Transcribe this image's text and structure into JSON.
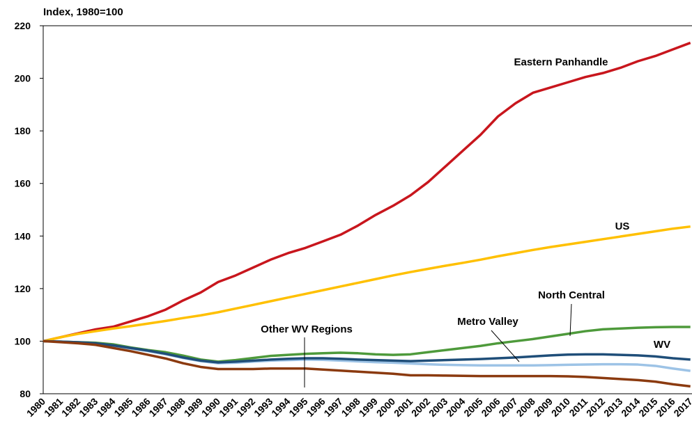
{
  "chart_data": {
    "type": "line",
    "y_label": "Index, 1980=100",
    "categories": [
      "1980",
      "1981",
      "1982",
      "1983",
      "1984",
      "1985",
      "1986",
      "1987",
      "1988",
      "1989",
      "1990",
      "1991",
      "1992",
      "1993",
      "1994",
      "1995",
      "1996",
      "1997",
      "1998",
      "1999",
      "2000",
      "2001",
      "2002",
      "2003",
      "2004",
      "2005",
      "2006",
      "2007",
      "2008",
      "2009",
      "2010",
      "2011",
      "2012",
      "2013",
      "2014",
      "2015",
      "2016",
      "2017"
    ],
    "ylim": [
      80,
      220
    ],
    "yticks": [
      80,
      100,
      120,
      140,
      160,
      180,
      200,
      220
    ],
    "series": [
      {
        "name": "Eastern Panhandle",
        "color": "#c8161d",
        "values": [
          100,
          101.5,
          103,
          104.5,
          105.5,
          107.5,
          109.5,
          112,
          115.5,
          118.5,
          122.5,
          125,
          128,
          131,
          133.5,
          135.5,
          138,
          140.5,
          144,
          148,
          151.5,
          155.5,
          160.5,
          166.5,
          172.5,
          178.5,
          185.5,
          190.5,
          194.5,
          196.5,
          198.5,
          200.5,
          202,
          204,
          206.5,
          208.5,
          211,
          213.5
        ]
      },
      {
        "name": "US",
        "color": "#ffc000",
        "values": [
          100,
          101.5,
          102.8,
          103.8,
          104.8,
          105.7,
          106.7,
          107.7,
          108.8,
          109.8,
          111,
          112.4,
          113.8,
          115.2,
          116.6,
          118,
          119.4,
          120.8,
          122.2,
          123.6,
          125,
          126.3,
          127.5,
          128.7,
          129.8,
          131,
          132.3,
          133.5,
          134.7,
          135.8,
          136.8,
          137.8,
          138.8,
          139.8,
          140.8,
          141.8,
          142.8,
          143.6
        ]
      },
      {
        "name": "North Central",
        "color": "#4e9a3b",
        "values": [
          100,
          99.8,
          99.6,
          99.4,
          98.8,
          97.6,
          96.6,
          95.8,
          94.5,
          93,
          92.2,
          92.8,
          93.6,
          94.4,
          94.8,
          95.2,
          95.4,
          95.6,
          95.4,
          95,
          94.8,
          95,
          95.8,
          96.6,
          97.4,
          98.2,
          99.2,
          100,
          100.8,
          101.8,
          102.8,
          103.8,
          104.5,
          104.8,
          105.1,
          105.3,
          105.4,
          105.4
        ]
      },
      {
        "name": "Metro Valley",
        "color": "#9dc3e6",
        "values": [
          100,
          99.8,
          99.5,
          99,
          98.2,
          97.2,
          96.2,
          95,
          93.6,
          92.4,
          91.6,
          91.8,
          92.2,
          92.6,
          92.8,
          93,
          92.9,
          92.6,
          92.3,
          92,
          91.8,
          91.5,
          91.2,
          91,
          90.9,
          90.8,
          90.8,
          90.8,
          90.8,
          90.9,
          91,
          91.1,
          91.2,
          91.2,
          91.1,
          90.6,
          89.6,
          88.7
        ]
      },
      {
        "name": "WV",
        "color": "#1f4e79",
        "values": [
          100,
          99.8,
          99.6,
          99.2,
          98.4,
          97.4,
          96.4,
          95.2,
          93.8,
          92.6,
          91.9,
          92.2,
          92.6,
          93,
          93.3,
          93.5,
          93.5,
          93.3,
          93,
          92.8,
          92.6,
          92.4,
          92.6,
          92.8,
          93,
          93.2,
          93.5,
          93.8,
          94.2,
          94.6,
          94.9,
          95,
          95,
          94.8,
          94.6,
          94.2,
          93.5,
          93
        ]
      },
      {
        "name": "Other WV Regions",
        "color": "#8b3a0f",
        "values": [
          100,
          99.6,
          99.2,
          98.6,
          97.4,
          96.2,
          94.8,
          93.4,
          91.6,
          90.2,
          89.4,
          89.4,
          89.4,
          89.6,
          89.6,
          89.6,
          89.2,
          88.8,
          88.4,
          88,
          87.6,
          87,
          87,
          86.9,
          86.8,
          86.7,
          86.7,
          86.7,
          86.7,
          86.7,
          86.6,
          86.4,
          86,
          85.6,
          85.2,
          84.6,
          83.6,
          82.8
        ]
      }
    ]
  }
}
